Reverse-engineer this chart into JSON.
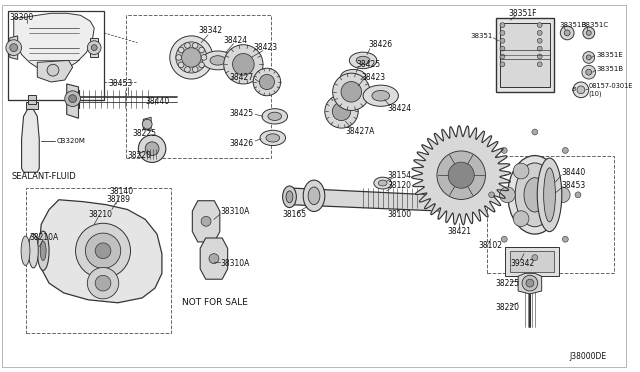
{
  "bg_color": "#ffffff",
  "fig_width": 6.4,
  "fig_height": 3.72,
  "dpi": 100,
  "line_color": "#333333",
  "text_color": "#111111",
  "diagram_code": "J38000DE",
  "sealant_label": "SEALANT-FLUID",
  "sealant_part": "CB320M",
  "not_for_sale": "NOT FOR SALE",
  "border_color": "#aaaaaa"
}
